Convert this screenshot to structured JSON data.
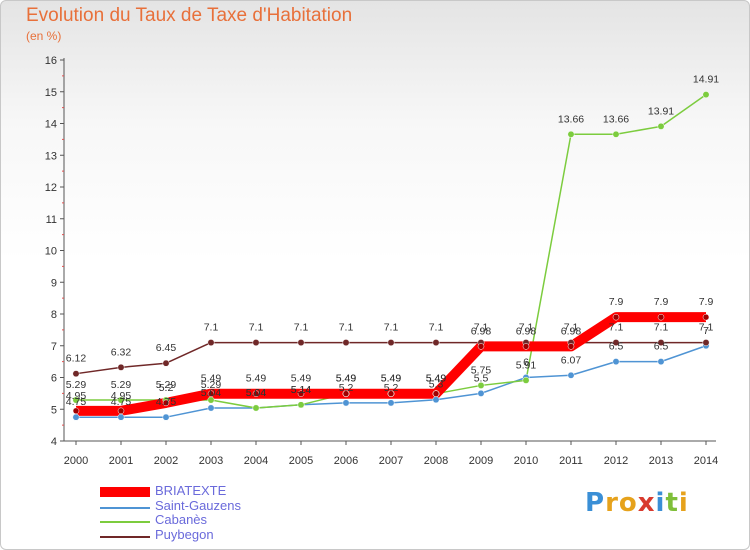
{
  "title": "Evolution du Taux de Taxe d'Habitation",
  "subtitle": "(en %)",
  "legend": {
    "briatexte": "BRIATEXTE",
    "saint_gauzens": "Saint-Gauzens",
    "cabanes": "Cabanès",
    "puybegon": "Puybegon"
  },
  "logo": {
    "letters": [
      "P",
      "r",
      "o",
      "x",
      "i",
      "t",
      "i"
    ],
    "colors": [
      "#3a8fd6",
      "#e6a21c",
      "#e6a21c",
      "#d83a2e",
      "#3a8fd6",
      "#7fbf3a",
      "#e6a21c"
    ]
  },
  "chart_data": {
    "type": "line",
    "title": "Evolution du Taux de Taxe d'Habitation",
    "subtitle": "(en %)",
    "x": [
      "2000",
      "2001",
      "2002",
      "2003",
      "2004",
      "2005",
      "2006",
      "2007",
      "2008",
      "2009",
      "2010",
      "2011",
      "2012",
      "2013",
      "2014"
    ],
    "ylim": [
      4,
      16
    ],
    "yticks": [
      "4",
      "5",
      "6",
      "7",
      "8",
      "9",
      "10",
      "11",
      "12",
      "13",
      "14",
      "15",
      "16"
    ],
    "grid": false,
    "legend_position": "bottom-left",
    "series": [
      {
        "name": "BRIATEXTE",
        "key": "briatexte",
        "color": "#ff0000",
        "values": [
          4.95,
          4.95,
          5.2,
          5.49,
          5.49,
          5.49,
          5.49,
          5.49,
          5.49,
          6.98,
          6.98,
          6.98,
          7.9,
          7.9,
          7.9
        ],
        "labels": [
          "4.95",
          "4.95",
          "5.2",
          "5.49",
          "5.49",
          "5.49",
          "5.49",
          "5.49",
          "5.49",
          "6.98",
          "6.98",
          "6.98",
          "7.9",
          "7.9",
          "7.9"
        ]
      },
      {
        "name": "Saint-Gauzens",
        "key": "saint_gauzens",
        "color": "#4f94d4",
        "values": [
          4.75,
          4.75,
          4.75,
          5.04,
          5.04,
          5.14,
          5.2,
          5.2,
          5.3,
          5.5,
          6.0,
          6.07,
          6.5,
          6.5,
          7.0
        ],
        "labels": [
          "4.75",
          "4.75",
          "4.75",
          "5.04",
          "5.04",
          "5.14",
          "5.2",
          "5.2",
          "5.3",
          "5.5",
          "6",
          "6.07",
          "6.5",
          "6.5",
          "7"
        ]
      },
      {
        "name": "Cabanès",
        "key": "cabanes",
        "color": "#7ccc3e",
        "values": [
          5.29,
          5.29,
          5.29,
          5.29,
          5.04,
          5.14,
          5.49,
          5.49,
          5.49,
          5.75,
          5.91,
          13.66,
          13.66,
          13.91,
          14.91
        ],
        "labels": [
          "5.29",
          "5.29",
          "5.29",
          "5.29",
          "5.04",
          "5.14",
          "5.49",
          "5.49",
          "5.49",
          "5.75",
          "5.91",
          "13.66",
          "13.66",
          "13.91",
          "14.91"
        ]
      },
      {
        "name": "Puybegon",
        "key": "puybegon",
        "color": "#702828",
        "values": [
          6.12,
          6.32,
          6.45,
          7.1,
          7.1,
          7.1,
          7.1,
          7.1,
          7.1,
          7.1,
          7.1,
          7.1,
          7.1,
          7.1,
          7.1
        ],
        "labels": [
          "6.12",
          "6.32",
          "6.45",
          "7.1",
          "7.1",
          "7.1",
          "7.1",
          "7.1",
          "7.1",
          "7.1",
          "7.1",
          "7.1",
          "7.1",
          "7.1",
          "7.1"
        ]
      }
    ]
  }
}
